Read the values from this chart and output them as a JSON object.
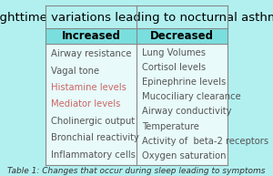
{
  "title": "Nighttime variations leading to nocturnal asthma",
  "col1_header": "Increased",
  "col2_header": "Decreased",
  "col1_items": [
    "Airway resistance",
    "Vagal tone",
    "Histamine levels",
    "Mediator levels",
    "Cholinergic output",
    "Bronchial reactivity",
    "Inflammatory cells"
  ],
  "col2_items": [
    "Lung Volumes",
    "Cortisol levels",
    "Epinephrine levels",
    "Mucociliary clearance",
    "Airway conductivity",
    "Temperature",
    "Activity of  beta-2 receptors",
    "Oxygen saturation"
  ],
  "caption": "Table 1: Changes that occur during sleep leading to symptoms",
  "bg_color": "#b2f0f0",
  "title_bg": "#b2f0f0",
  "header_bg": "#7adede",
  "cell_bg": "#e8fafa",
  "border_color": "#888888",
  "title_fontsize": 9.5,
  "header_fontsize": 8.5,
  "item_fontsize": 7.2,
  "caption_fontsize": 6.5,
  "col1_item_color": "#555555",
  "col2_item_color": "#555555",
  "histamine_color": "#cc6666",
  "mediator_color": "#cc6666"
}
